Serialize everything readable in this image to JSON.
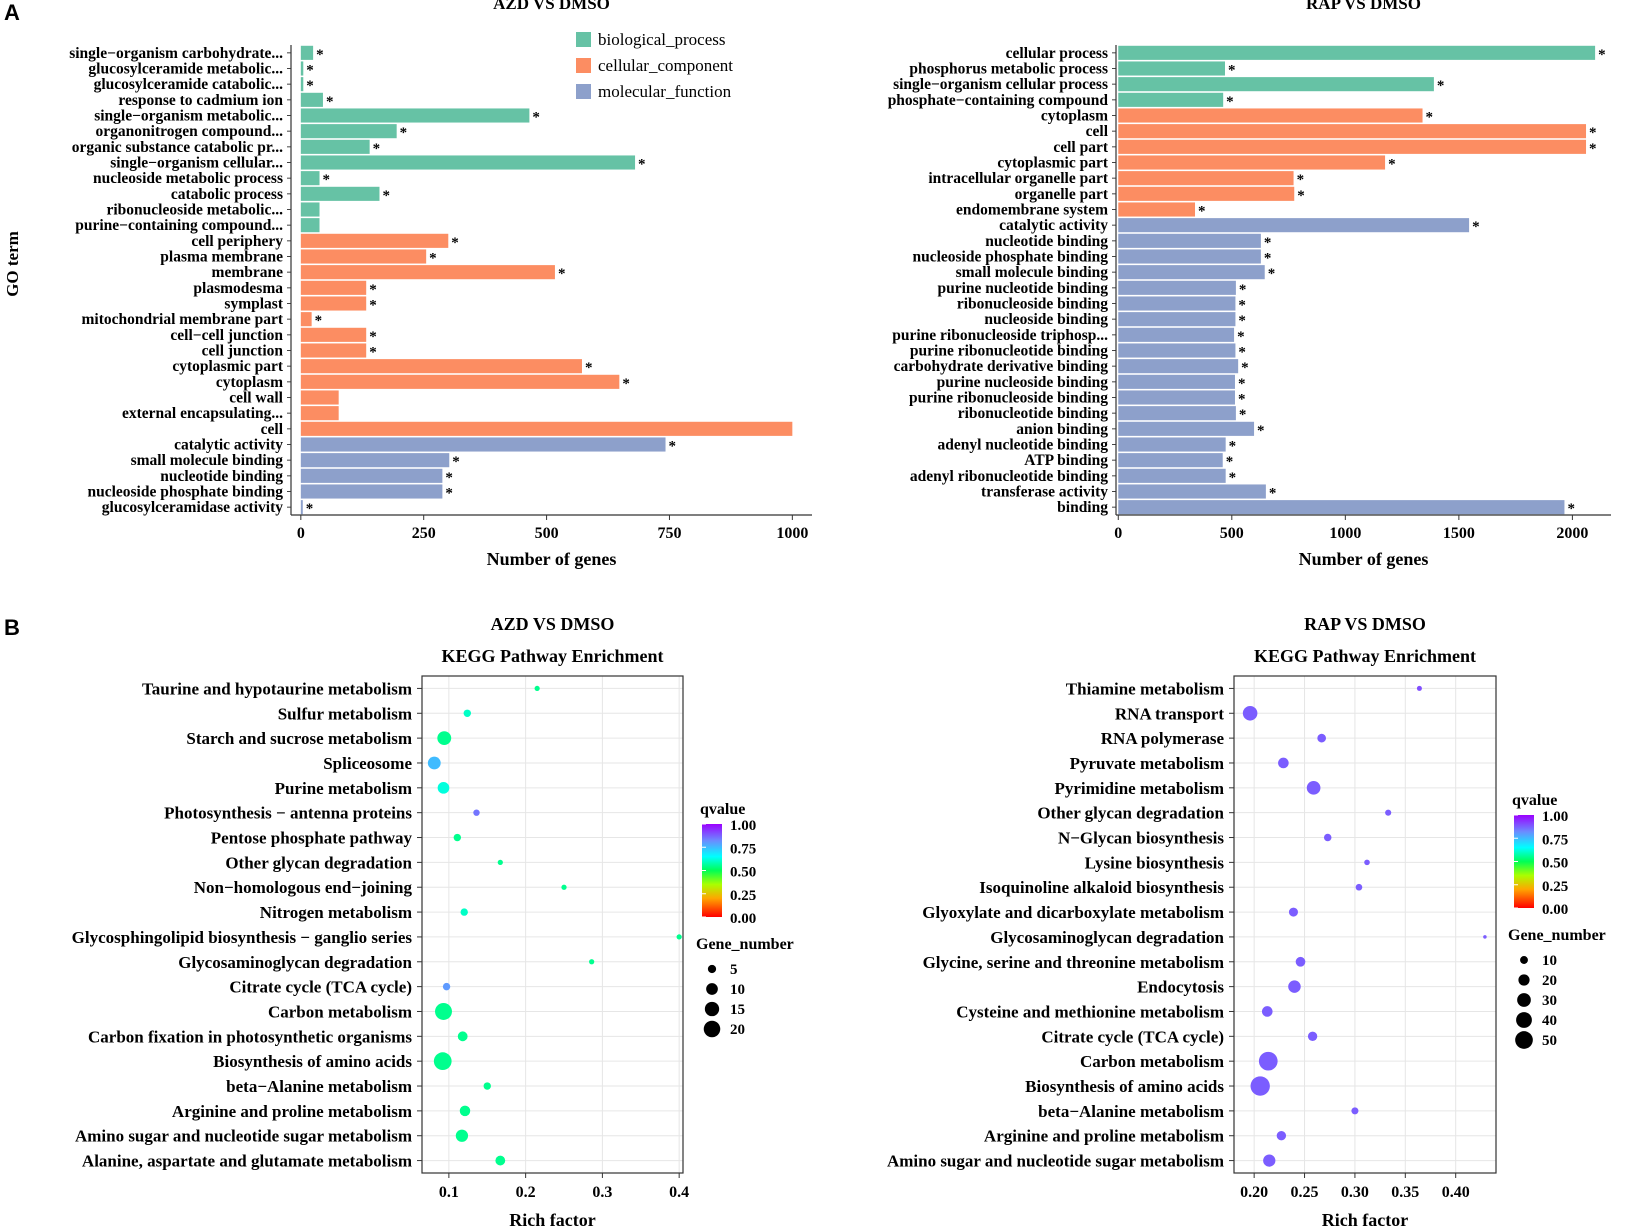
{
  "panel_labels": {
    "a": "A",
    "b": "B"
  },
  "go_common": {
    "y_axis_title": "GO term",
    "legend": [
      {
        "name": "biological_process",
        "color": "#66c2a5"
      },
      {
        "name": "cellular_component",
        "color": "#fc8d62"
      },
      {
        "name": "molecular_function",
        "color": "#8da0cb"
      }
    ]
  },
  "kegg_common": {
    "subtitle": "KEGG Pathway Enrichment",
    "color_legend_title": "qvalue",
    "size_legend_title": "Gene_number"
  },
  "chart_data": [
    {
      "id": "go_azd",
      "type": "bar",
      "title": "AZD VS DMSO",
      "xlabel": "Number of genes",
      "ylabel": "GO term",
      "xlim": [
        -20,
        1040
      ],
      "xticks": [
        0,
        250,
        500,
        750,
        1000
      ],
      "legend": [
        "biological_process",
        "cellular_component",
        "molecular_function"
      ],
      "bars": [
        {
          "label": "single−organism carbohydrate...",
          "value": 25,
          "category": "biological_process",
          "sig": "*"
        },
        {
          "label": "glucosylceramide metabolic...",
          "value": 5,
          "category": "biological_process",
          "sig": "*"
        },
        {
          "label": "glucosylceramide catabolic...",
          "value": 5,
          "category": "biological_process",
          "sig": "*"
        },
        {
          "label": "response to cadmium ion",
          "value": 45,
          "category": "biological_process",
          "sig": "*"
        },
        {
          "label": "single−organism metabolic...",
          "value": 465,
          "category": "biological_process",
          "sig": "*"
        },
        {
          "label": "organonitrogen compound...",
          "value": 195,
          "category": "biological_process",
          "sig": "*"
        },
        {
          "label": "organic substance catabolic pr...",
          "value": 140,
          "category": "biological_process",
          "sig": "*"
        },
        {
          "label": "single−organism cellular...",
          "value": 680,
          "category": "biological_process",
          "sig": "*"
        },
        {
          "label": "nucleoside metabolic process",
          "value": 38,
          "category": "biological_process",
          "sig": "*"
        },
        {
          "label": "catabolic process",
          "value": 160,
          "category": "biological_process",
          "sig": "*"
        },
        {
          "label": "ribonucleoside metabolic...",
          "value": 38,
          "category": "biological_process",
          "sig": ""
        },
        {
          "label": "purine−containing compound...",
          "value": 38,
          "category": "biological_process",
          "sig": ""
        },
        {
          "label": "cell periphery",
          "value": 300,
          "category": "cellular_component",
          "sig": "*"
        },
        {
          "label": "plasma membrane",
          "value": 255,
          "category": "cellular_component",
          "sig": "*"
        },
        {
          "label": "membrane",
          "value": 517,
          "category": "cellular_component",
          "sig": "*"
        },
        {
          "label": "plasmodesma",
          "value": 133,
          "category": "cellular_component",
          "sig": "*"
        },
        {
          "label": "symplast",
          "value": 133,
          "category": "cellular_component",
          "sig": "*"
        },
        {
          "label": "mitochondrial membrane part",
          "value": 22,
          "category": "cellular_component",
          "sig": "*"
        },
        {
          "label": "cell−cell junction",
          "value": 133,
          "category": "cellular_component",
          "sig": "*"
        },
        {
          "label": "cell junction",
          "value": 133,
          "category": "cellular_component",
          "sig": "*"
        },
        {
          "label": "cytoplasmic part",
          "value": 572,
          "category": "cellular_component",
          "sig": "*"
        },
        {
          "label": "cytoplasm",
          "value": 648,
          "category": "cellular_component",
          "sig": "*"
        },
        {
          "label": "cell wall",
          "value": 77,
          "category": "cellular_component",
          "sig": ""
        },
        {
          "label": "external encapsulating...",
          "value": 77,
          "category": "cellular_component",
          "sig": ""
        },
        {
          "label": "cell",
          "value": 1000,
          "category": "cellular_component",
          "sig": ""
        },
        {
          "label": "catalytic activity",
          "value": 742,
          "category": "molecular_function",
          "sig": "*"
        },
        {
          "label": "small molecule binding",
          "value": 302,
          "category": "molecular_function",
          "sig": "*"
        },
        {
          "label": "nucleotide binding",
          "value": 288,
          "category": "molecular_function",
          "sig": "*"
        },
        {
          "label": "nucleoside phosphate binding",
          "value": 288,
          "category": "molecular_function",
          "sig": "*"
        },
        {
          "label": "glucosylceramidase activity",
          "value": 4,
          "category": "molecular_function",
          "sig": "*"
        }
      ]
    },
    {
      "id": "go_rap",
      "type": "bar",
      "title": "RAP VS DMSO",
      "xlabel": "Number of genes",
      "ylabel": "",
      "xlim": [
        -10,
        2170
      ],
      "xticks": [
        0,
        500,
        1000,
        1500,
        2000
      ],
      "legend": [
        "biological_process",
        "cellular_component",
        "molecular_function"
      ],
      "bars": [
        {
          "label": "cellular process",
          "value": 2100,
          "category": "biological_process",
          "sig": "*"
        },
        {
          "label": "phosphorus metabolic process",
          "value": 470,
          "category": "biological_process",
          "sig": "*"
        },
        {
          "label": "single−organism cellular process",
          "value": 1390,
          "category": "biological_process",
          "sig": "*"
        },
        {
          "label": "phosphate−containing compound",
          "value": 462,
          "category": "biological_process",
          "sig": "*"
        },
        {
          "label": "cytoplasm",
          "value": 1340,
          "category": "cellular_component",
          "sig": "*"
        },
        {
          "label": "cell",
          "value": 2060,
          "category": "cellular_component",
          "sig": "*"
        },
        {
          "label": "cell part",
          "value": 2060,
          "category": "cellular_component",
          "sig": "*"
        },
        {
          "label": "cytoplasmic part",
          "value": 1175,
          "category": "cellular_component",
          "sig": "*"
        },
        {
          "label": "intracellular organelle part",
          "value": 772,
          "category": "cellular_component",
          "sig": "*"
        },
        {
          "label": "organelle part",
          "value": 775,
          "category": "cellular_component",
          "sig": "*"
        },
        {
          "label": "endomembrane system",
          "value": 338,
          "category": "cellular_component",
          "sig": "*"
        },
        {
          "label": "catalytic activity",
          "value": 1545,
          "category": "molecular_function",
          "sig": "*"
        },
        {
          "label": "nucleotide binding",
          "value": 628,
          "category": "molecular_function",
          "sig": "*"
        },
        {
          "label": "nucleoside phosphate binding",
          "value": 628,
          "category": "molecular_function",
          "sig": "*"
        },
        {
          "label": "small molecule binding",
          "value": 645,
          "category": "molecular_function",
          "sig": "*"
        },
        {
          "label": "purine nucleotide binding",
          "value": 518,
          "category": "molecular_function",
          "sig": "*"
        },
        {
          "label": "ribonucleoside binding",
          "value": 516,
          "category": "molecular_function",
          "sig": "*"
        },
        {
          "label": "nucleoside binding",
          "value": 516,
          "category": "molecular_function",
          "sig": "*"
        },
        {
          "label": "purine ribonucleoside triphosp...",
          "value": 510,
          "category": "molecular_function",
          "sig": "*"
        },
        {
          "label": "purine ribonucleotide binding",
          "value": 516,
          "category": "molecular_function",
          "sig": "*"
        },
        {
          "label": "carbohydrate derivative binding",
          "value": 528,
          "category": "molecular_function",
          "sig": "*"
        },
        {
          "label": "purine nucleoside binding",
          "value": 514,
          "category": "molecular_function",
          "sig": "*"
        },
        {
          "label": "purine ribonucleoside binding",
          "value": 514,
          "category": "molecular_function",
          "sig": "*"
        },
        {
          "label": "ribonucleotide binding",
          "value": 518,
          "category": "molecular_function",
          "sig": "*"
        },
        {
          "label": "anion binding",
          "value": 598,
          "category": "molecular_function",
          "sig": "*"
        },
        {
          "label": "adenyl nucleotide binding",
          "value": 473,
          "category": "molecular_function",
          "sig": "*"
        },
        {
          "label": "ATP binding",
          "value": 460,
          "category": "molecular_function",
          "sig": "*"
        },
        {
          "label": "adenyl ribonucleotide binding",
          "value": 473,
          "category": "molecular_function",
          "sig": "*"
        },
        {
          "label": "transferase activity",
          "value": 650,
          "category": "molecular_function",
          "sig": "*"
        },
        {
          "label": "binding",
          "value": 1965,
          "category": "molecular_function",
          "sig": "*"
        }
      ]
    },
    {
      "id": "kegg_azd",
      "type": "scatter",
      "title": "AZD VS DMSO",
      "subtitle": "KEGG Pathway Enrichment",
      "xlabel": "Rich factor",
      "xlim": [
        0.065,
        0.405
      ],
      "xticks": [
        0.1,
        0.2,
        0.3,
        0.4
      ],
      "xtick_labels": [
        "0.1",
        "0.2",
        "0.3",
        "0.4"
      ],
      "color_legend": {
        "title": "qvalue",
        "ticks": [
          "1.00",
          "0.75",
          "0.50",
          "0.25",
          "0.00"
        ]
      },
      "size_legend": {
        "title": "Gene_number",
        "values": [
          5,
          10,
          15,
          20
        ]
      },
      "pathways": [
        "Taurine and hypotaurine metabolism",
        "Sulfur metabolism",
        "Starch and sucrose metabolism",
        "Spliceosome",
        "Purine metabolism",
        "Photosynthesis − antenna proteins",
        "Pentose phosphate pathway",
        "Other glycan degradation",
        "Non−homologous end−joining",
        "Nitrogen metabolism",
        "Glycosphingolipid biosynthesis − ganglio series",
        "Glycosaminoglycan degradation",
        "Citrate cycle (TCA cycle)",
        "Carbon metabolism",
        "Carbon fixation in photosynthetic organisms",
        "Biosynthesis of amino acids",
        "beta−Alanine metabolism",
        "Arginine and proline metabolism",
        "Amino sugar and nucleotide sugar metabolism",
        "Alanine, aspartate and glutamate metabolism"
      ],
      "points": [
        {
          "x": 0.215,
          "genes": 2,
          "q": 0.55
        },
        {
          "x": 0.124,
          "genes": 4,
          "q": 0.6
        },
        {
          "x": 0.094,
          "genes": 14,
          "q": 0.55
        },
        {
          "x": 0.081,
          "genes": 12,
          "q": 0.75
        },
        {
          "x": 0.093,
          "genes": 10,
          "q": 0.62
        },
        {
          "x": 0.136,
          "genes": 3,
          "q": 0.85
        },
        {
          "x": 0.111,
          "genes": 4,
          "q": 0.55
        },
        {
          "x": 0.167,
          "genes": 2,
          "q": 0.55
        },
        {
          "x": 0.25,
          "genes": 2,
          "q": 0.55
        },
        {
          "x": 0.12,
          "genes": 4,
          "q": 0.6
        },
        {
          "x": 0.4,
          "genes": 2,
          "q": 0.55
        },
        {
          "x": 0.286,
          "genes": 2,
          "q": 0.55
        },
        {
          "x": 0.097,
          "genes": 4,
          "q": 0.8
        },
        {
          "x": 0.093,
          "genes": 21,
          "q": 0.55
        },
        {
          "x": 0.118,
          "genes": 7,
          "q": 0.55
        },
        {
          "x": 0.092,
          "genes": 23,
          "q": 0.55
        },
        {
          "x": 0.15,
          "genes": 4,
          "q": 0.55
        },
        {
          "x": 0.121,
          "genes": 8,
          "q": 0.55
        },
        {
          "x": 0.117,
          "genes": 11,
          "q": 0.55
        },
        {
          "x": 0.167,
          "genes": 7,
          "q": 0.55
        }
      ]
    },
    {
      "id": "kegg_rap",
      "type": "scatter",
      "title": "RAP VS DMSO",
      "subtitle": "KEGG Pathway Enrichment",
      "xlabel": "Rich factor",
      "xlim": [
        0.18,
        0.44
      ],
      "xticks": [
        0.2,
        0.25,
        0.3,
        0.35,
        0.4
      ],
      "xtick_labels": [
        "0.20",
        "0.25",
        "0.30",
        "0.35",
        "0.40"
      ],
      "color_legend": {
        "title": "qvalue",
        "ticks": [
          "1.00",
          "0.75",
          "0.50",
          "0.25",
          "0.00"
        ]
      },
      "size_legend": {
        "title": "Gene_number",
        "values": [
          10,
          20,
          30,
          40,
          50
        ]
      },
      "pathways": [
        "Thiamine metabolism",
        "RNA transport",
        "RNA polymerase",
        "Pyruvate metabolism",
        "Pyrimidine metabolism",
        "Other glycan degradation",
        "N−Glycan biosynthesis",
        "Lysine biosynthesis",
        "Isoquinoline alkaloid biosynthesis",
        "Glyoxylate and dicarboxylate metabolism",
        "Glycosaminoglycan degradation",
        "Glycine, serine and threonine metabolism",
        "Endocytosis",
        "Cysteine and methionine metabolism",
        "Citrate cycle (TCA cycle)",
        "Carbon metabolism",
        "Biosynthesis of amino acids",
        "beta−Alanine metabolism",
        "Arginine and proline metabolism",
        "Amino sugar and nucleotide sugar metabolism"
      ],
      "points": [
        {
          "x": 0.364,
          "genes": 4,
          "q": 0.9
        },
        {
          "x": 0.196,
          "genes": 34,
          "q": 0.88
        },
        {
          "x": 0.267,
          "genes": 12,
          "q": 0.88
        },
        {
          "x": 0.229,
          "genes": 18,
          "q": 0.88
        },
        {
          "x": 0.259,
          "genes": 30,
          "q": 0.88
        },
        {
          "x": 0.333,
          "genes": 6,
          "q": 0.88
        },
        {
          "x": 0.273,
          "genes": 9,
          "q": 0.88
        },
        {
          "x": 0.312,
          "genes": 5,
          "q": 0.88
        },
        {
          "x": 0.304,
          "genes": 7,
          "q": 0.88
        },
        {
          "x": 0.239,
          "genes": 13,
          "q": 0.88
        },
        {
          "x": 0.429,
          "genes": 2,
          "q": 0.88
        },
        {
          "x": 0.246,
          "genes": 15,
          "q": 0.88
        },
        {
          "x": 0.24,
          "genes": 25,
          "q": 0.88
        },
        {
          "x": 0.213,
          "genes": 18,
          "q": 0.88
        },
        {
          "x": 0.258,
          "genes": 14,
          "q": 0.88
        },
        {
          "x": 0.214,
          "genes": 56,
          "q": 0.88
        },
        {
          "x": 0.206,
          "genes": 60,
          "q": 0.88
        },
        {
          "x": 0.3,
          "genes": 8,
          "q": 0.88
        },
        {
          "x": 0.227,
          "genes": 14,
          "q": 0.88
        },
        {
          "x": 0.215,
          "genes": 24,
          "q": 0.88
        }
      ]
    }
  ]
}
